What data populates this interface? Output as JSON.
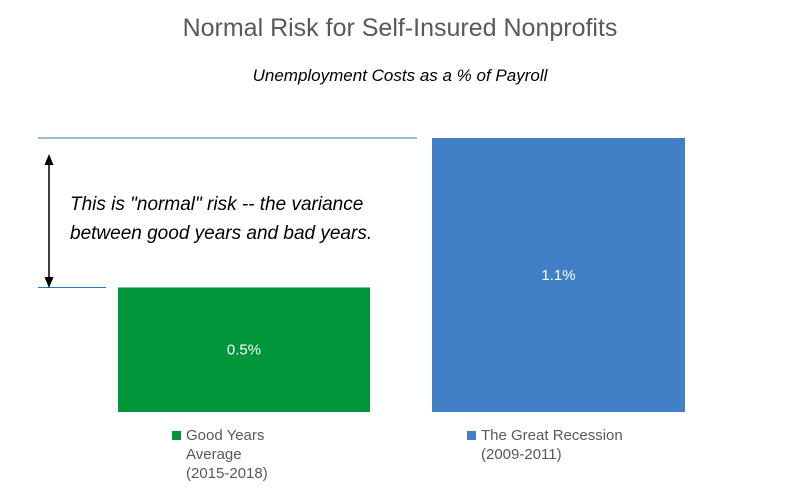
{
  "chart_data": {
    "type": "bar",
    "title": "Normal Risk for Self-Insured Nonprofits",
    "subtitle": "Unemployment Costs as a % of Payroll",
    "xlabel": "",
    "ylabel": "",
    "ylim": [
      0,
      1.1
    ],
    "grid": false,
    "legend_position": "bottom",
    "categories": [
      "Good Years Average (2015-2018)",
      "The Great Recession (2009-2011)"
    ],
    "values": [
      0.5,
      1.1
    ],
    "data_labels": [
      "0.5%",
      "1.1%"
    ],
    "colors": [
      "#00973A",
      "#4180C6"
    ],
    "legend": [
      {
        "lines": [
          "Good Years",
          "Average",
          "(2015-2018)"
        ],
        "color": "#00973A"
      },
      {
        "lines": [
          "The Great Recession",
          "(2009-2011)"
        ],
        "color": "#4180C6"
      }
    ],
    "annotation": {
      "lines": [
        "This is \"normal\" risk -- the variance",
        "between good years and bad years."
      ],
      "reference_line_color": "#2E75B6",
      "arrow_color": "#000000"
    }
  }
}
